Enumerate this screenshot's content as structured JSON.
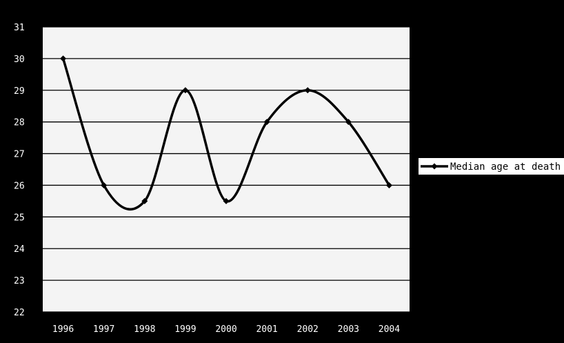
{
  "chart_data": {
    "type": "line",
    "title": "",
    "xlabel": "",
    "ylabel": "",
    "categories": [
      "1996",
      "1997",
      "1998",
      "1999",
      "2000",
      "2001",
      "2002",
      "2003",
      "2004"
    ],
    "series": [
      {
        "name": "Median age at death",
        "values": [
          30,
          26,
          25.5,
          29,
          25.5,
          28,
          29,
          28,
          26
        ]
      }
    ],
    "ylim": [
      22,
      31
    ],
    "yticks": [
      "22",
      "23",
      "24",
      "25",
      "26",
      "27",
      "28",
      "29",
      "30",
      "31"
    ],
    "grid": "horizontal",
    "smoothed": true,
    "marker": "diamond",
    "legend_position": "right",
    "colors": {
      "background": "#000000",
      "plot_area": "#f4f4f4",
      "gridline": "#000000",
      "line": "#000000",
      "text": "#ffffff",
      "legend_box": "#ffffff"
    }
  }
}
